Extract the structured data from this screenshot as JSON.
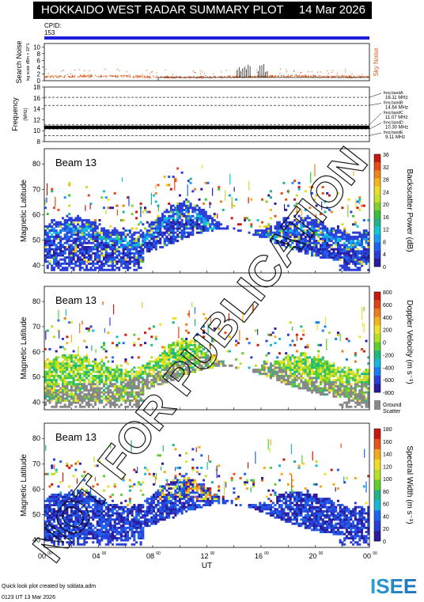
{
  "header": {
    "title": "HOKKAIDO WEST RADAR SUMMARY PLOT",
    "date": "14 Mar 2026",
    "cpid_label": "CPID:",
    "cpid_value": "153"
  },
  "noise_panel": {
    "ylabel": "Search Noise",
    "ylabel_sub": "log scale dBm × 10^1",
    "right_label": "Sky Noise",
    "yticks": [
      0,
      2,
      4,
      6,
      8,
      10
    ],
    "ylim": [
      0,
      11
    ]
  },
  "freq_panel": {
    "ylabel": "Frequency",
    "ylabel_sub": "(MHz)",
    "yticks": [
      8,
      10,
      12,
      14,
      16,
      18
    ],
    "ylim": [
      8,
      18
    ],
    "bands": [
      {
        "label": "freq bandA",
        "value": "16.11 MHz",
        "f": 16.11
      },
      {
        "label": "freq bandB",
        "value": "14.64 MHz",
        "f": 14.64
      },
      {
        "label": "freq bandC",
        "value": "11.07 MHz",
        "f": 11.07
      },
      {
        "label": "freq bandD",
        "value": "10.30 MHz",
        "f": 10.3
      },
      {
        "label": "freq bandE",
        "value": "9.11 MHz",
        "f": 9.11
      }
    ]
  },
  "panels": [
    {
      "beam": "Beam 13",
      "ylabel": "Magnetic Latitude",
      "cbar_label": "Backscatter Power (dB)",
      "cbar_ticks": [
        "0",
        "4",
        "8",
        "12",
        "16",
        "20",
        "24",
        "28",
        "32",
        "36"
      ],
      "kind": "power"
    },
    {
      "beam": "Beam 13",
      "ylabel": "Magnetic Latitude",
      "cbar_label": "Doppler Velocity (m s⁻¹)",
      "cbar_ticks": [
        "-800",
        "-600",
        "-400",
        "-200",
        "0",
        "200",
        "400",
        "600",
        "800"
      ],
      "kind": "velocity",
      "ground_label": "Ground",
      "scatter_label": "Scatter"
    },
    {
      "beam": "Beam 13",
      "ylabel": "Magnetic Latitude",
      "cbar_label": "Spectral Width (m s⁻¹)",
      "cbar_ticks": [
        "0",
        "20",
        "40",
        "60",
        "80",
        "100",
        "120",
        "140",
        "160",
        "180"
      ],
      "kind": "width"
    }
  ],
  "lat_ticks": [
    40,
    50,
    60,
    70,
    80
  ],
  "lat_range": [
    37,
    86
  ],
  "xaxis": {
    "label": "UT",
    "ticks": [
      "00",
      "04",
      "08",
      "12",
      "16",
      "20",
      "00"
    ],
    "tick_sup": "00"
  },
  "footer": {
    "line1": "Quick look plot created by sddata.adm",
    "line2": "0123 UT 13 Mar 2026"
  },
  "watermark": "NOT FOR PUBLICATION",
  "logo": "ISEE",
  "colors": {
    "power": [
      "#2b1c9e",
      "#2a3fd6",
      "#1e64ec",
      "#1b9bf3",
      "#14c8d2",
      "#21b48c",
      "#3bbf3a",
      "#7fd12b",
      "#c7e02d",
      "#eddc26",
      "#f4b61e",
      "#ef821b",
      "#e44d17",
      "#c8190f"
    ],
    "velocity": [
      "#2b1c9e",
      "#2a3fd6",
      "#1b7ef0",
      "#15b8d8",
      "#20b97e",
      "#5fcf2e",
      "#b6df2a",
      "#eee12a",
      "#f3b41d",
      "#ec7d1a",
      "#df4514",
      "#c61a0f"
    ],
    "width": [
      "#2b1c9e",
      "#2a3fd6",
      "#1e64ec",
      "#15b8d8",
      "#21b48c",
      "#5fcf2e",
      "#b6df2a",
      "#eedc26",
      "#f3a91c",
      "#e4561a",
      "#c8190f"
    ],
    "ground": "#888888",
    "noise": "#e05a18"
  }
}
